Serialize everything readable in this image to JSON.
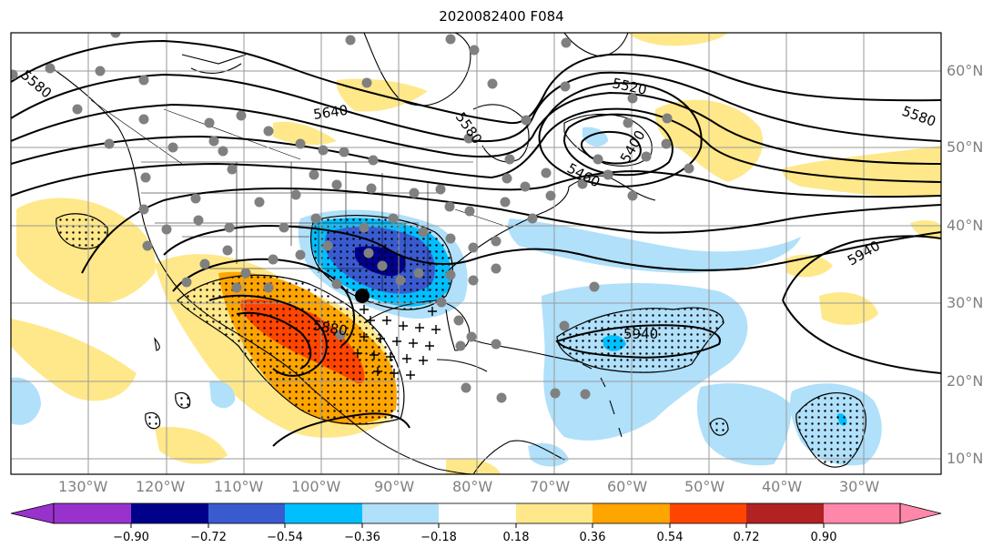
{
  "title": "2020082400 F084",
  "lat_labels": [
    "60°N",
    "50°N",
    "40°N",
    "30°N",
    "20°N",
    "10°N"
  ],
  "lon_labels": [
    "130°W",
    "120°W",
    "110°W",
    "100°W",
    "90°W",
    "80°W",
    "70°W",
    "60°W",
    "50°W",
    "40°W",
    "30°W"
  ],
  "contour_labels": [
    "5520",
    "5580",
    "5640",
    "5580",
    "5460",
    "5400",
    "5580",
    "5940",
    "5880",
    "5940"
  ],
  "colorbar": {
    "ticks": [
      "−0.90",
      "−0.72",
      "−0.54",
      "−0.36",
      "−0.18",
      "0.18",
      "0.36",
      "0.54",
      "0.72",
      "0.90"
    ],
    "colors": [
      "#9932cc",
      "#00008b",
      "#3a5bd0",
      "#00bfff",
      "#b0e0fa",
      "#ffffff",
      "#ffe88a",
      "#ffa500",
      "#ff4500",
      "#b22222",
      "#ff88aa",
      "#ff88aa"
    ]
  },
  "colors": {
    "contour": "#000000",
    "grid": "#9a9a9a",
    "station_dot": "#808080",
    "land_outline": "#000000"
  },
  "markers": {
    "station_dot": "gray-circle",
    "storm_center": "black-circle",
    "significance_plus": "+"
  }
}
